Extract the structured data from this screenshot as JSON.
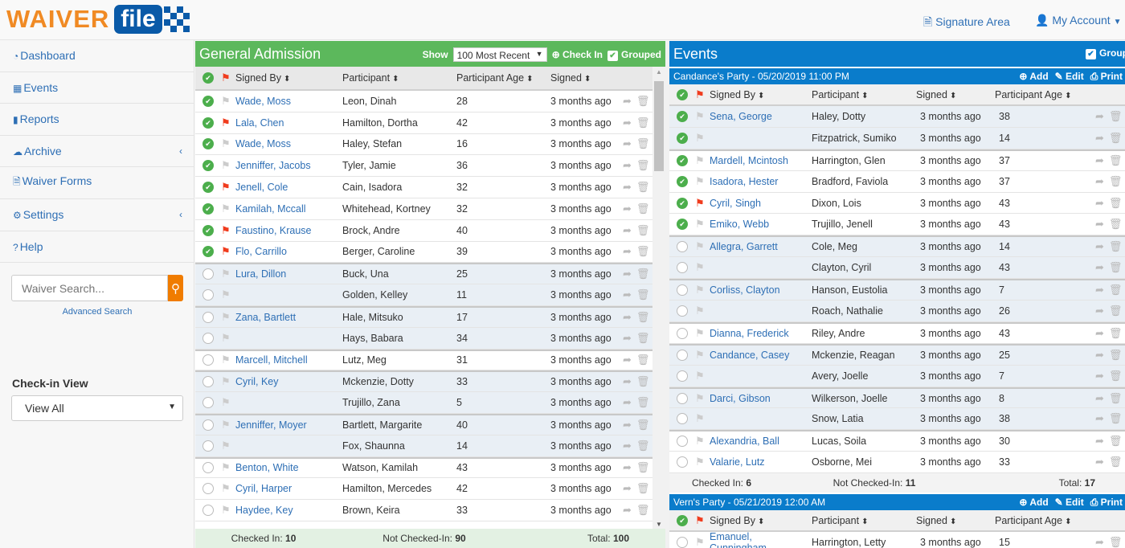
{
  "brand": {
    "logo_text": "WAIVER file"
  },
  "top": {
    "signature_area": "Signature Area",
    "my_account": "My Account"
  },
  "sidebar": {
    "items": [
      {
        "label": "Dashboard",
        "icon": "dashboard-icon"
      },
      {
        "label": "Events",
        "icon": "calendar-icon"
      },
      {
        "label": "Reports",
        "icon": "bar-chart-icon"
      },
      {
        "label": "Archive",
        "icon": "cloud-icon",
        "chevron": true
      },
      {
        "label": "Waiver Forms",
        "icon": "file-icon"
      },
      {
        "label": "Settings",
        "icon": "gear-icon",
        "chevron": true
      },
      {
        "label": "Help",
        "icon": "question-icon"
      }
    ],
    "search_placeholder": "Waiver Search...",
    "advanced_search": "Advanced Search",
    "checkin_view_label": "Check-in View",
    "checkin_view_value": "View All"
  },
  "colors": {
    "green": "#5cb85c",
    "blue": "#0a7ccb",
    "orange": "#f07c00",
    "red_flag": "#f03c1e"
  },
  "ga": {
    "title": "General Admission",
    "show_label": "Show",
    "show_value": "100 Most Recent",
    "check_in": "Check In",
    "grouped": "Grouped",
    "columns": [
      "Signed By",
      "Participant",
      "Participant Age",
      "Signed"
    ],
    "rows": [
      {
        "checked": true,
        "flag": false,
        "signer": "Wade, Moss",
        "participant": "Leon, Dinah",
        "age": "28",
        "signed": "3 months ago"
      },
      {
        "checked": true,
        "flag": true,
        "signer": "Lala, Chen",
        "participant": "Hamilton, Dortha",
        "age": "42",
        "signed": "3 months ago"
      },
      {
        "checked": true,
        "flag": false,
        "signer": "Wade, Moss",
        "participant": "Haley, Stefan",
        "age": "16",
        "signed": "3 months ago"
      },
      {
        "checked": true,
        "flag": false,
        "signer": "Jenniffer, Jacobs",
        "participant": "Tyler, Jamie",
        "age": "36",
        "signed": "3 months ago"
      },
      {
        "checked": true,
        "flag": true,
        "signer": "Jenell, Cole",
        "participant": "Cain, Isadora",
        "age": "32",
        "signed": "3 months ago"
      },
      {
        "checked": true,
        "flag": false,
        "signer": "Kamilah, Mccall",
        "participant": "Whitehead, Kortney",
        "age": "32",
        "signed": "3 months ago"
      },
      {
        "checked": true,
        "flag": true,
        "signer": "Faustino, Krause",
        "participant": "Brock, Andre",
        "age": "40",
        "signed": "3 months ago"
      },
      {
        "checked": true,
        "flag": true,
        "signer": "Flo, Carrillo",
        "participant": "Berger, Caroline",
        "age": "39",
        "signed": "3 months ago"
      },
      {
        "checked": false,
        "flag": false,
        "signer": "Lura, Dillon",
        "participant": "Buck, Una",
        "age": "25",
        "signed": "3 months ago",
        "shaded": true,
        "group_start": true
      },
      {
        "checked": false,
        "flag": false,
        "signer": "",
        "participant": "Golden, Kelley",
        "age": "11",
        "signed": "3 months ago",
        "shaded": true
      },
      {
        "checked": false,
        "flag": false,
        "signer": "Zana, Bartlett",
        "participant": "Hale, Mitsuko",
        "age": "17",
        "signed": "3 months ago",
        "shaded": true,
        "group_start": true
      },
      {
        "checked": false,
        "flag": false,
        "signer": "",
        "participant": "Hays, Babara",
        "age": "34",
        "signed": "3 months ago",
        "shaded": true
      },
      {
        "checked": false,
        "flag": false,
        "signer": "Marcell, Mitchell",
        "participant": "Lutz, Meg",
        "age": "31",
        "signed": "3 months ago",
        "group_start": true
      },
      {
        "checked": false,
        "flag": false,
        "signer": "Cyril, Key",
        "participant": "Mckenzie, Dotty",
        "age": "33",
        "signed": "3 months ago",
        "shaded": true,
        "group_start": true
      },
      {
        "checked": false,
        "flag": false,
        "signer": "",
        "participant": "Trujillo, Zana",
        "age": "5",
        "signed": "3 months ago",
        "shaded": true
      },
      {
        "checked": false,
        "flag": false,
        "signer": "Jenniffer, Moyer",
        "participant": "Bartlett, Margarite",
        "age": "40",
        "signed": "3 months ago",
        "shaded": true,
        "group_start": true
      },
      {
        "checked": false,
        "flag": false,
        "signer": "",
        "participant": "Fox, Shaunna",
        "age": "14",
        "signed": "3 months ago",
        "shaded": true
      },
      {
        "checked": false,
        "flag": false,
        "signer": "Benton, White",
        "participant": "Watson, Kamilah",
        "age": "43",
        "signed": "3 months ago",
        "group_start": true
      },
      {
        "checked": false,
        "flag": false,
        "signer": "Cyril, Harper",
        "participant": "Hamilton, Mercedes",
        "age": "42",
        "signed": "3 months ago"
      },
      {
        "checked": false,
        "flag": false,
        "signer": "Haydee, Key",
        "participant": "Brown, Keira",
        "age": "33",
        "signed": "3 months ago"
      }
    ],
    "footer": {
      "checked_in_label": "Checked In:",
      "checked_in": "10",
      "not_checked_label": "Not Checked-In:",
      "not_checked": "90",
      "total_label": "Total:",
      "total": "100"
    }
  },
  "events": {
    "title": "Events",
    "grouped": "Group",
    "actions": {
      "add": "Add",
      "edit": "Edit",
      "print": "Print"
    },
    "list": [
      {
        "name": "Candance's Party - 05/20/2019 11:00 PM",
        "columns": [
          "Signed By",
          "Participant",
          "Signed",
          "Participant Age"
        ],
        "rows": [
          {
            "checked": true,
            "flag": false,
            "signer": "Sena, George",
            "participant": "Haley, Dotty",
            "signed": "3 months ago",
            "age": "38",
            "shaded": true
          },
          {
            "checked": true,
            "flag": false,
            "signer": "",
            "participant": "Fitzpatrick, Sumiko",
            "signed": "3 months ago",
            "age": "14",
            "shaded": true
          },
          {
            "checked": true,
            "flag": false,
            "signer": "Mardell, Mcintosh",
            "participant": "Harrington, Glen",
            "signed": "3 months ago",
            "age": "37",
            "group_start": true
          },
          {
            "checked": true,
            "flag": false,
            "signer": "Isadora, Hester",
            "participant": "Bradford, Faviola",
            "signed": "3 months ago",
            "age": "37"
          },
          {
            "checked": true,
            "flag": true,
            "signer": "Cyril, Singh",
            "participant": "Dixon, Lois",
            "signed": "3 months ago",
            "age": "43"
          },
          {
            "checked": true,
            "flag": false,
            "signer": "Emiko, Webb",
            "participant": "Trujillo, Jenell",
            "signed": "3 months ago",
            "age": "43"
          },
          {
            "checked": false,
            "flag": false,
            "signer": "Allegra, Garrett",
            "participant": "Cole, Meg",
            "signed": "3 months ago",
            "age": "14",
            "shaded": true,
            "group_start": true
          },
          {
            "checked": false,
            "flag": false,
            "signer": "",
            "participant": "Clayton, Cyril",
            "signed": "3 months ago",
            "age": "43",
            "shaded": true
          },
          {
            "checked": false,
            "flag": false,
            "signer": "Corliss, Clayton",
            "participant": "Hanson, Eustolia",
            "signed": "3 months ago",
            "age": "7",
            "shaded": true,
            "group_start": true
          },
          {
            "checked": false,
            "flag": false,
            "signer": "",
            "participant": "Roach, Nathalie",
            "signed": "3 months ago",
            "age": "26",
            "shaded": true
          },
          {
            "checked": false,
            "flag": false,
            "signer": "Dianna, Frederick",
            "participant": "Riley, Andre",
            "signed": "3 months ago",
            "age": "43",
            "group_start": true
          },
          {
            "checked": false,
            "flag": false,
            "signer": "Candance, Casey",
            "participant": "Mckenzie, Reagan",
            "signed": "3 months ago",
            "age": "25",
            "shaded": true,
            "group_start": true
          },
          {
            "checked": false,
            "flag": false,
            "signer": "",
            "participant": "Avery, Joelle",
            "signed": "3 months ago",
            "age": "7",
            "shaded": true
          },
          {
            "checked": false,
            "flag": false,
            "signer": "Darci, Gibson",
            "participant": "Wilkerson, Joelle",
            "signed": "3 months ago",
            "age": "8",
            "shaded": true,
            "group_start": true
          },
          {
            "checked": false,
            "flag": false,
            "signer": "",
            "participant": "Snow, Latia",
            "signed": "3 months ago",
            "age": "38",
            "shaded": true
          },
          {
            "checked": false,
            "flag": false,
            "signer": "Alexandria, Ball",
            "participant": "Lucas, Soila",
            "signed": "3 months ago",
            "age": "30",
            "group_start": true
          },
          {
            "checked": false,
            "flag": false,
            "signer": "Valarie, Lutz",
            "participant": "Osborne, Mei",
            "signed": "3 months ago",
            "age": "33"
          }
        ],
        "footer": {
          "checked_in_label": "Checked In:",
          "checked_in": "6",
          "not_checked_label": "Not Checked-In:",
          "not_checked": "11",
          "total_label": "Total:",
          "total": "17"
        }
      },
      {
        "name": "Vern's Party - 05/21/2019 12:00 AM",
        "columns": [
          "Signed By",
          "Participant",
          "Signed",
          "Participant Age"
        ],
        "rows": [
          {
            "checked": false,
            "flag": false,
            "signer": "Emanuel, Cunningham",
            "participant": "Harrington, Letty",
            "signed": "3 months ago",
            "age": "15"
          }
        ]
      }
    ]
  }
}
